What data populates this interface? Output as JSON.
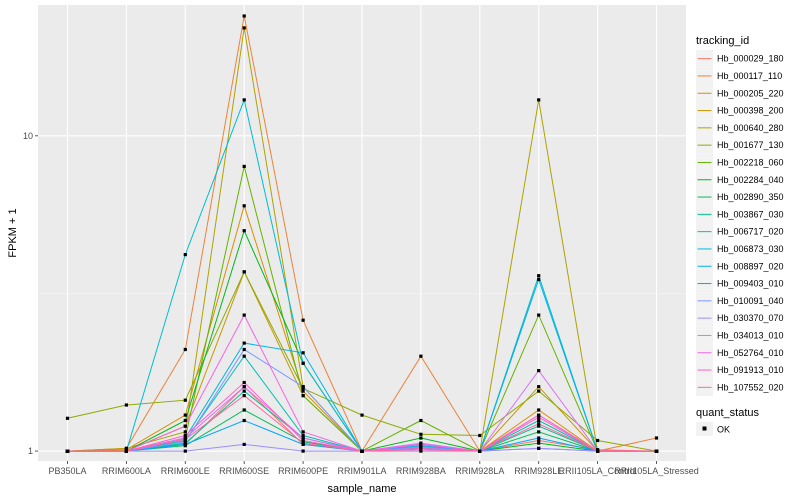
{
  "chart_data": {
    "type": "line",
    "title": "",
    "xlabel": "sample_name",
    "ylabel": "FPKM + 1",
    "y_scale": "log10",
    "ylim": [
      0.93,
      26
    ],
    "y_ticks": [
      1,
      10
    ],
    "y_tick_labels": [
      "1",
      "10"
    ],
    "grid": true,
    "legend_position": "right",
    "panel_background": "#ebebeb",
    "categories": [
      "PB350LA",
      "RRIM600LA",
      "RRIM600LE",
      "RRIM600SE",
      "RRIM600PE",
      "RRIM901LA",
      "RRIM928BA",
      "RRIM928LA",
      "RRIM928LE",
      "RRII105LA_Control",
      "RRII105LA_Stressed"
    ],
    "legend_color_title": "tracking_id",
    "legend_shape_title": "quant_status",
    "legend_shape_label": "OK",
    "series": [
      {
        "name": "Hb_000029_180",
        "color": "#F8766D",
        "values": [
          1.0,
          1.01,
          1.05,
          1.6,
          1.05,
          1.0,
          1.02,
          1.0,
          1.08,
          1.01,
          1.0
        ]
      },
      {
        "name": "Hb_000117_110",
        "color": "#EC8239",
        "values": [
          1.0,
          1.02,
          2.1,
          24.0,
          2.6,
          1.0,
          2.0,
          1.0,
          1.3,
          1.0,
          1.1
        ]
      },
      {
        "name": "Hb_000205_220",
        "color": "#DB8E00",
        "values": [
          1.0,
          1.01,
          1.3,
          6.0,
          1.55,
          1.0,
          1.05,
          1.0,
          1.35,
          1.0,
          1.0
        ]
      },
      {
        "name": "Hb_000398_200",
        "color": "#C79800",
        "values": [
          1.0,
          1.0,
          1.2,
          3.7,
          1.5,
          1.0,
          1.04,
          1.0,
          1.6,
          1.0,
          1.0
        ]
      },
      {
        "name": "Hb_000640_280",
        "color": "#AEA200",
        "values": [
          1.0,
          1.02,
          1.15,
          22.0,
          1.6,
          1.0,
          1.03,
          1.0,
          13.0,
          1.0,
          1.0
        ]
      },
      {
        "name": "Hb_001677_130",
        "color": "#8FAA00",
        "values": [
          1.27,
          1.4,
          1.45,
          3.7,
          1.58,
          1.3,
          1.13,
          1.12,
          1.55,
          1.08,
          1.0
        ]
      },
      {
        "name": "Hb_002218_060",
        "color": "#64B200",
        "values": [
          1.0,
          1.0,
          1.1,
          8.0,
          1.5,
          1.0,
          1.25,
          1.0,
          2.7,
          1.0,
          1.0
        ]
      },
      {
        "name": "Hb_002284_040",
        "color": "#00B81B",
        "values": [
          1.0,
          1.0,
          1.25,
          5.0,
          1.9,
          1.0,
          1.1,
          1.0,
          1.06,
          1.0,
          1.0
        ]
      },
      {
        "name": "Hb_002890_350",
        "color": "#00BD5C",
        "values": [
          1.0,
          1.0,
          1.04,
          1.35,
          1.07,
          1.0,
          1.02,
          1.0,
          1.15,
          1.0,
          1.0
        ]
      },
      {
        "name": "Hb_003867_030",
        "color": "#00C08E",
        "values": [
          1.0,
          1.0,
          1.06,
          1.55,
          1.1,
          1.0,
          1.02,
          1.0,
          1.2,
          1.0,
          1.0
        ]
      },
      {
        "name": "Hb_006717_020",
        "color": "#00C1B2",
        "values": [
          1.0,
          1.0,
          1.08,
          2.0,
          1.12,
          1.0,
          1.03,
          1.0,
          1.25,
          1.0,
          1.0
        ]
      },
      {
        "name": "Hb_006873_030",
        "color": "#00BCD1",
        "values": [
          1.0,
          1.0,
          4.2,
          13.0,
          1.9,
          1.0,
          1.05,
          1.0,
          3.6,
          1.0,
          1.0
        ]
      },
      {
        "name": "Hb_008897_020",
        "color": "#00B3EB",
        "values": [
          1.0,
          1.0,
          1.1,
          2.2,
          2.05,
          1.0,
          1.04,
          1.0,
          3.5,
          1.0,
          1.0
        ]
      },
      {
        "name": "Hb_009403_010",
        "color": "#00A5FF",
        "values": [
          1.0,
          1.0,
          1.05,
          1.25,
          1.05,
          1.0,
          1.02,
          1.0,
          1.1,
          1.0,
          1.0
        ]
      },
      {
        "name": "Hb_010091_040",
        "color": "#7997FF",
        "values": [
          1.0,
          1.0,
          1.07,
          2.1,
          1.6,
          1.0,
          1.03,
          1.0,
          1.02,
          1.0,
          1.0
        ]
      },
      {
        "name": "Hb_030370_070",
        "color": "#9F8CFF",
        "values": [
          1.0,
          1.0,
          1.0,
          1.05,
          1.0,
          1.0,
          1.0,
          1.0,
          1.02,
          1.0,
          1.0
        ]
      },
      {
        "name": "Hb_034013_010",
        "color": "#DC71FA",
        "values": [
          1.0,
          1.0,
          1.1,
          1.6,
          1.1,
          1.0,
          1.06,
          1.0,
          1.8,
          1.0,
          1.0
        ]
      },
      {
        "name": "Hb_052764_010",
        "color": "#F365E6",
        "values": [
          1.0,
          1.0,
          1.2,
          2.7,
          1.15,
          1.0,
          1.05,
          1.0,
          1.3,
          1.0,
          1.0
        ]
      },
      {
        "name": "Hb_091913_010",
        "color": "#FF61C7",
        "values": [
          1.0,
          1.0,
          1.12,
          1.65,
          1.08,
          1.0,
          1.02,
          1.0,
          1.28,
          1.0,
          1.0
        ]
      },
      {
        "name": "Hb_107552_020",
        "color": "#FF67A4",
        "values": [
          1.0,
          1.0,
          1.09,
          1.5,
          1.06,
          1.0,
          1.01,
          1.0,
          1.22,
          1.0,
          1.0
        ]
      }
    ]
  }
}
